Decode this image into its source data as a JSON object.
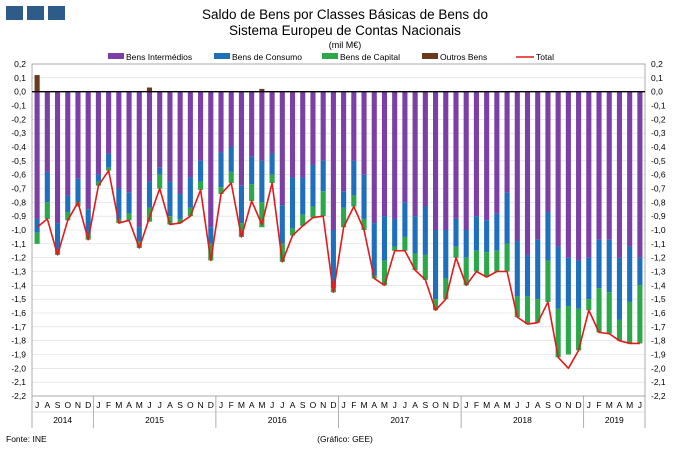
{
  "chart_data": {
    "type": "bar",
    "stacked": true,
    "title_lines": [
      "Saldo de Bens por Classes Básicas de Bens do",
      "Sistema Europeu de Contas Nacionais"
    ],
    "subtitle": "(mil M€)",
    "source": "Fonte: INE",
    "credit": "(Gráfico: GEE)",
    "ylim": [
      -2.2,
      0.2
    ],
    "yticks": [
      "0,2",
      "0,1",
      "0,0",
      "-0,1",
      "-0,2",
      "-0,3",
      "-0,4",
      "-0,5",
      "-0,6",
      "-0,7",
      "-0,8",
      "-0,9",
      "-1,0",
      "-1,1",
      "-1,2",
      "-1,3",
      "-1,4",
      "-1,5",
      "-1,6",
      "-1,7",
      "-1,8",
      "-1,9",
      "-2,0",
      "-2,1",
      "-2,2"
    ],
    "ytick_values": [
      0.2,
      0.1,
      0,
      -0.1,
      -0.2,
      -0.3,
      -0.4,
      -0.5,
      -0.6,
      -0.7,
      -0.8,
      -0.9,
      -1.0,
      -1.1,
      -1.2,
      -1.3,
      -1.4,
      -1.5,
      -1.6,
      -1.7,
      -1.8,
      -1.9,
      -2.0,
      -2.1,
      -2.2
    ],
    "categories": [
      "J",
      "A",
      "S",
      "O",
      "N",
      "D",
      "J",
      "F",
      "M",
      "A",
      "M",
      "J",
      "J",
      "A",
      "S",
      "O",
      "N",
      "D",
      "J",
      "F",
      "M",
      "A",
      "M",
      "J",
      "J",
      "A",
      "S",
      "O",
      "N",
      "D",
      "J",
      "F",
      "M",
      "A",
      "M",
      "J",
      "J",
      "A",
      "S",
      "O",
      "N",
      "D",
      "J",
      "F",
      "M",
      "A",
      "M",
      "J",
      "J",
      "A",
      "S",
      "O",
      "N",
      "D",
      "J",
      "F",
      "M",
      "A",
      "M",
      "J"
    ],
    "years": [
      {
        "label": "2014",
        "start": 0,
        "count": 6
      },
      {
        "label": "2015",
        "start": 6,
        "count": 12
      },
      {
        "label": "2016",
        "start": 18,
        "count": 12
      },
      {
        "label": "2017",
        "start": 30,
        "count": 12
      },
      {
        "label": "2018",
        "start": 42,
        "count": 12
      },
      {
        "label": "2019",
        "start": 54,
        "count": 6
      }
    ],
    "colors": {
      "Bens Intermédios": "#7b3fa6",
      "Bens de Consumo": "#1f6fbf",
      "Bens de Capital": "#2aa84a",
      "Outros Bens": "#6b3a1c",
      "Total": "#e3191b"
    },
    "legend": [
      "Bens Intermédios",
      "Bens de Consumo",
      "Bens de Capital",
      "Outros Bens",
      "Total"
    ],
    "series": [
      {
        "name": "Bens Intermédios",
        "values": [
          -0.92,
          -0.58,
          -0.95,
          -0.75,
          -0.63,
          -0.85,
          -0.6,
          -0.45,
          -0.7,
          -0.73,
          -0.98,
          -0.65,
          -0.55,
          -0.65,
          -0.74,
          -0.62,
          -0.5,
          -0.98,
          -0.44,
          -0.4,
          -0.68,
          -0.47,
          -0.5,
          -0.45,
          -0.82,
          -0.62,
          -0.62,
          -0.53,
          -0.5,
          -1.0,
          -0.72,
          -0.5,
          -0.6,
          -0.95,
          -0.9,
          -0.92,
          -0.8,
          -0.9,
          -0.83,
          -1.0,
          -1.0,
          -0.92,
          -1.0,
          -0.9,
          -0.93,
          -0.88,
          -0.73,
          -1.08,
          -1.18,
          -1.07,
          -0.87,
          -1.12,
          -1.2,
          -1.22,
          -1.2,
          -1.07,
          -1.07,
          -1.2,
          -1.12,
          -1.2
        ]
      },
      {
        "name": "Bens de Consumo",
        "values": [
          -0.1,
          -0.22,
          -0.2,
          -0.12,
          -0.17,
          -0.18,
          -0.05,
          -0.1,
          -0.22,
          -0.15,
          -0.1,
          -0.19,
          -0.05,
          -0.25,
          -0.18,
          -0.22,
          -0.15,
          -0.12,
          -0.25,
          -0.18,
          -0.27,
          -0.2,
          -0.3,
          -0.15,
          -0.28,
          -0.37,
          -0.27,
          -0.3,
          -0.22,
          -0.42,
          -0.12,
          -0.25,
          -0.32,
          -0.38,
          -0.32,
          -0.2,
          -0.25,
          -0.27,
          -0.35,
          -0.5,
          -0.35,
          -0.2,
          -0.2,
          -0.25,
          -0.23,
          -0.27,
          -0.37,
          -0.4,
          -0.3,
          -0.43,
          -0.35,
          -0.45,
          -0.35,
          -0.35,
          -0.3,
          -0.35,
          -0.38,
          -0.45,
          -0.4,
          -0.2
        ]
      },
      {
        "name": "Bens de Capital",
        "values": [
          -0.08,
          -0.12,
          -0.03,
          -0.06,
          -0.03,
          -0.04,
          -0.03,
          -0.02,
          -0.03,
          -0.05,
          -0.05,
          -0.1,
          -0.1,
          -0.06,
          -0.03,
          -0.06,
          -0.06,
          -0.12,
          -0.05,
          -0.08,
          -0.1,
          -0.12,
          -0.18,
          -0.06,
          -0.13,
          -0.05,
          -0.08,
          -0.08,
          -0.18,
          -0.03,
          -0.14,
          -0.08,
          -0.08,
          -0.02,
          -0.18,
          -0.03,
          -0.1,
          -0.12,
          -0.18,
          -0.08,
          -0.15,
          -0.08,
          -0.2,
          -0.15,
          -0.18,
          -0.15,
          -0.2,
          -0.15,
          -0.2,
          -0.17,
          -0.3,
          -0.35,
          -0.35,
          -0.3,
          -0.08,
          -0.32,
          -0.3,
          -0.15,
          -0.3,
          -0.42
        ]
      },
      {
        "name": "Outros Bens",
        "values": [
          0.12,
          0,
          0,
          0,
          0,
          0,
          0,
          0,
          0,
          0,
          0,
          0.03,
          0,
          0,
          0,
          0,
          0,
          0,
          0,
          0,
          0,
          0,
          0.02,
          0,
          0,
          0,
          0,
          0,
          0,
          0,
          0,
          0,
          0,
          0,
          0,
          0,
          0,
          0,
          0,
          0,
          0,
          0,
          0,
          0,
          0,
          0,
          0,
          0,
          0,
          0,
          0,
          0,
          0,
          0,
          0,
          0,
          0,
          0,
          0,
          0
        ]
      },
      {
        "name": "Total",
        "values": [
          -0.98,
          -0.92,
          -1.18,
          -0.93,
          -0.8,
          -1.07,
          -0.68,
          -0.57,
          -0.95,
          -0.93,
          -1.13,
          -0.91,
          -0.7,
          -0.96,
          -0.95,
          -0.9,
          -0.71,
          -1.22,
          -0.74,
          -0.66,
          -1.05,
          -0.79,
          -0.96,
          -0.66,
          -1.23,
          -1.04,
          -0.97,
          -0.91,
          -0.9,
          -1.45,
          -0.98,
          -0.83,
          -1.0,
          -1.35,
          -1.4,
          -1.15,
          -1.15,
          -1.29,
          -1.36,
          -1.58,
          -1.5,
          -1.2,
          -1.4,
          -1.3,
          -1.34,
          -1.3,
          -1.3,
          -1.63,
          -1.68,
          -1.67,
          -1.52,
          -1.92,
          -2.0,
          -1.87,
          -1.58,
          -1.74,
          -1.75,
          -1.8,
          -1.82,
          -1.82
        ]
      }
    ]
  }
}
